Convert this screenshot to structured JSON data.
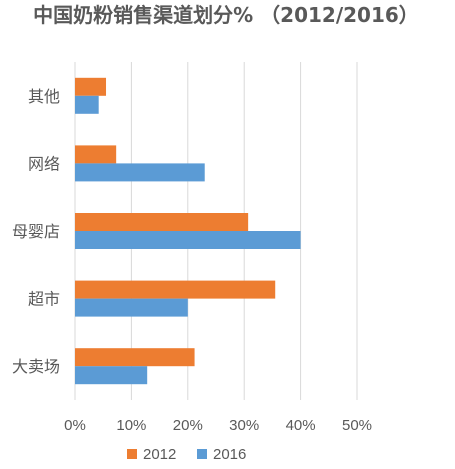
{
  "colors": {
    "2012": "#ed7d31",
    "2016": "#5b9bd5"
  },
  "chart_data": {
    "type": "bar",
    "orientation": "horizontal",
    "title": "中国奶粉销售渠道划分% （2012/2016）",
    "categories": [
      "其他",
      "网络",
      "母婴店",
      "超市",
      "大卖场"
    ],
    "series": [
      {
        "name": "2012",
        "values": [
          5.5,
          7.3,
          30.7,
          35.5,
          21.2
        ]
      },
      {
        "name": "2016",
        "values": [
          4.2,
          23.0,
          40.0,
          20.0,
          12.8
        ]
      }
    ],
    "xticks": [
      "0%",
      "10%",
      "20%",
      "30%",
      "40%",
      "50%"
    ],
    "xlim": [
      0,
      50
    ],
    "grid": true,
    "legend_position": "bottom"
  }
}
